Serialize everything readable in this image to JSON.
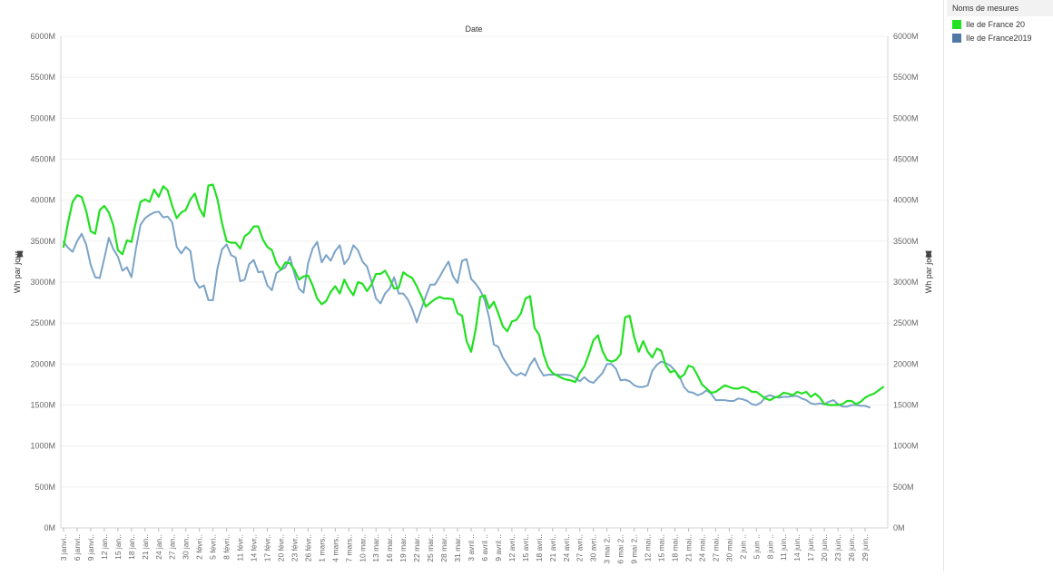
{
  "legend": {
    "title": "Noms de mesures",
    "items": [
      {
        "label": "Ile de France 20",
        "color": "#22e022"
      },
      {
        "label": "Ile de France2019",
        "color": "#4e79a7"
      }
    ]
  },
  "chart_data": {
    "type": "line",
    "title": "Date",
    "xlabel": "",
    "ylabel": "Wh par jour",
    "ylabel_right": "Wh par jour",
    "ylim": [
      0,
      6000
    ],
    "yticks": [
      "0M",
      "500M",
      "1000M",
      "1500M",
      "2000M",
      "2500M",
      "3000M",
      "3500M",
      "4000M",
      "4500M",
      "5000M",
      "5500M",
      "6000M"
    ],
    "grid": true,
    "x_tick_labels": [
      "3 janvi..",
      "6 janvi..",
      "9 janvi..",
      "12 jan..",
      "15 jan..",
      "18 jan..",
      "21 jan..",
      "24 jan..",
      "27 jan..",
      "30 jan..",
      "2 févri..",
      "5 févri..",
      "8 févri..",
      "11 févr..",
      "14 févr..",
      "17 févr..",
      "20 févr..",
      "23 févr..",
      "26 févr..",
      "1 mars..",
      "4 mars..",
      "7 mars..",
      "10 mar..",
      "13 mar..",
      "16 mar..",
      "19 mar..",
      "22 mar..",
      "25 mar..",
      "28 mar..",
      "31 mar..",
      "3 avril ..",
      "6 avril ..",
      "9 avril ..",
      "12 avri..",
      "15 avri..",
      "18 avri..",
      "21 avri..",
      "24 avri..",
      "27 avri..",
      "30 avri..",
      "3 mai 2..",
      "6 mai 2..",
      "9 mai 2..",
      "12 mai..",
      "15 mai..",
      "18 mai..",
      "21 mai..",
      "24 mai..",
      "27 mai..",
      "30 mai..",
      "2 juin ..",
      "5 juin ..",
      "8 juin ..",
      "11 juin..",
      "14 juin..",
      "17 juin..",
      "20 juin..",
      "23 juin..",
      "26 juin..",
      "29 juin.."
    ],
    "series": [
      {
        "name": "Ile de France 20",
        "color": "#22e022",
        "values": [
          3430,
          3730,
          3980,
          4060,
          4040,
          3870,
          3620,
          3590,
          3880,
          3930,
          3850,
          3690,
          3390,
          3340,
          3510,
          3490,
          3740,
          3980,
          4010,
          3980,
          4130,
          4040,
          4170,
          4120,
          3930,
          3780,
          3850,
          3880,
          4010,
          4080,
          3900,
          3800,
          4180,
          4190,
          4010,
          3720,
          3500,
          3480,
          3480,
          3410,
          3560,
          3600,
          3680,
          3680,
          3520,
          3430,
          3390,
          3230,
          3150,
          3240,
          3230,
          3150,
          3030,
          3070,
          3080,
          2960,
          2800,
          2730,
          2770,
          2880,
          2950,
          2860,
          3030,
          2920,
          2840,
          3000,
          2980,
          2890,
          2970,
          3100,
          3100,
          3140,
          3040,
          2920,
          2930,
          3120,
          3080,
          3050,
          2950,
          2830,
          2700,
          2750,
          2790,
          2820,
          2800,
          2800,
          2790,
          2620,
          2590,
          2280,
          2150,
          2420,
          2820,
          2840,
          2680,
          2760,
          2620,
          2460,
          2400,
          2520,
          2540,
          2620,
          2800,
          2830,
          2440,
          2360,
          2120,
          1960,
          1890,
          1860,
          1830,
          1810,
          1800,
          1780,
          1890,
          1970,
          2120,
          2290,
          2350,
          2160,
          2050,
          2030,
          2050,
          2120,
          2570,
          2590,
          2330,
          2150,
          2280,
          2150,
          2080,
          2190,
          2160,
          1980,
          1900,
          1920,
          1830,
          1870,
          1980,
          1960,
          1860,
          1750,
          1700,
          1650,
          1660,
          1700,
          1740,
          1720,
          1700,
          1700,
          1720,
          1700,
          1660,
          1660,
          1620,
          1580,
          1560,
          1590,
          1610,
          1650,
          1640,
          1620,
          1660,
          1640,
          1660,
          1600,
          1640,
          1590,
          1510,
          1500,
          1500,
          1500,
          1510,
          1550,
          1550,
          1510,
          1540,
          1590,
          1620,
          1640,
          1680,
          1720
        ]
      },
      {
        "name": "Ile de France2019",
        "color": "#7ba3c7",
        "values": [
          3490,
          3420,
          3370,
          3500,
          3590,
          3460,
          3210,
          3060,
          3050,
          3290,
          3540,
          3400,
          3310,
          3140,
          3180,
          3060,
          3410,
          3700,
          3780,
          3820,
          3850,
          3860,
          3790,
          3800,
          3730,
          3430,
          3350,
          3430,
          3380,
          3020,
          2930,
          2960,
          2780,
          2780,
          3170,
          3400,
          3460,
          3330,
          3300,
          3010,
          3030,
          3220,
          3270,
          3120,
          3130,
          2960,
          2900,
          3110,
          3150,
          3180,
          3310,
          3100,
          2920,
          2870,
          3230,
          3410,
          3490,
          3240,
          3330,
          3260,
          3380,
          3450,
          3220,
          3290,
          3450,
          3390,
          3250,
          3190,
          3010,
          2800,
          2740,
          2860,
          2920,
          3060,
          2860,
          2860,
          2790,
          2670,
          2510,
          2670,
          2830,
          2970,
          2970,
          3060,
          3160,
          3250,
          3070,
          2990,
          3260,
          3280,
          3040,
          2980,
          2900,
          2780,
          2560,
          2240,
          2210,
          2080,
          1990,
          1900,
          1860,
          1890,
          1860,
          1990,
          2070,
          1950,
          1860,
          1870,
          1870,
          1870,
          1870,
          1870,
          1860,
          1830,
          1790,
          1840,
          1790,
          1770,
          1830,
          1890,
          2000,
          2000,
          1940,
          1800,
          1810,
          1790,
          1740,
          1720,
          1720,
          1740,
          1920,
          1990,
          2030,
          2010,
          1980,
          1920,
          1850,
          1720,
          1660,
          1650,
          1620,
          1640,
          1680,
          1640,
          1560,
          1560,
          1560,
          1550,
          1550,
          1580,
          1570,
          1550,
          1510,
          1500,
          1530,
          1600,
          1620,
          1600,
          1590,
          1600,
          1600,
          1610,
          1610,
          1580,
          1560,
          1520,
          1510,
          1520,
          1510,
          1540,
          1560,
          1510,
          1480,
          1480,
          1500,
          1500,
          1490,
          1490,
          1470
        ]
      }
    ]
  }
}
